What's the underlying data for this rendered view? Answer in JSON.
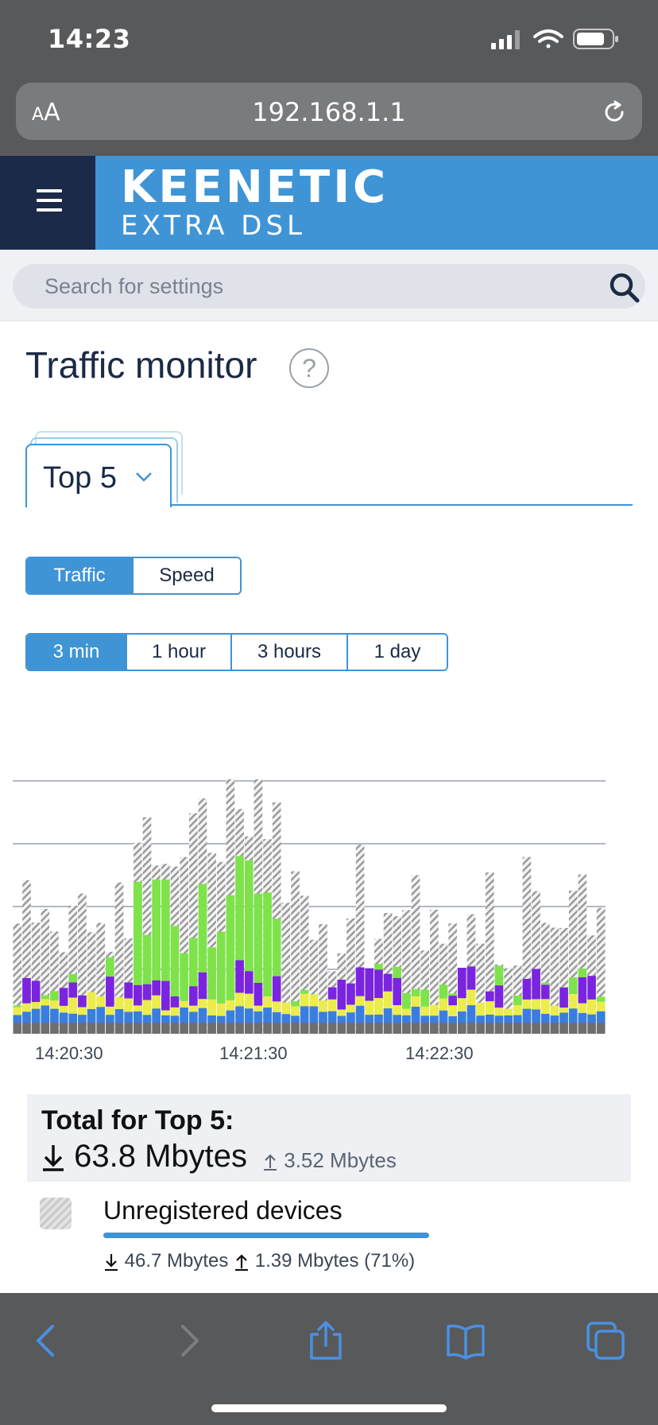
{
  "status_bar": {
    "time": "14:23"
  },
  "browser": {
    "aa_small": "A",
    "aa_big": "A",
    "url": "192.168.1.1"
  },
  "header": {
    "brand": "KEENETIC",
    "model": "EXTRA DSL"
  },
  "search": {
    "placeholder": "Search for settings"
  },
  "page": {
    "title": "Traffic monitor",
    "help": "?"
  },
  "tab": {
    "label": "Top 5"
  },
  "mode_toggle": {
    "options": [
      "Traffic",
      "Speed"
    ],
    "selected": "Traffic"
  },
  "range_toggle": {
    "options": [
      "3 min",
      "1 hour",
      "3 hours",
      "1 day"
    ],
    "selected": "3 min"
  },
  "chart_data": {
    "type": "bar",
    "stacked": true,
    "x_ticks": [
      "14:20:30",
      "14:21:30",
      "14:22:30"
    ],
    "gridlines": 4,
    "colors": {
      "Unregistered devices": "#cfcfcf",
      "grey": "#6e6e6e",
      "blue": "#3a7de0",
      "yellow": "#ecec4a",
      "purple": "#7a24e0",
      "green": "#7ee34a"
    }
  },
  "totals": {
    "title": "Total for Top 5:",
    "download": "63.8 Mbytes",
    "upload": "3.52 Mbytes"
  },
  "devices": [
    {
      "name": "Unregistered devices",
      "download": "46.7 Mbytes",
      "upload": "1.39 Mbytes",
      "share": "(71%)",
      "share_fraction": 0.71
    }
  ]
}
